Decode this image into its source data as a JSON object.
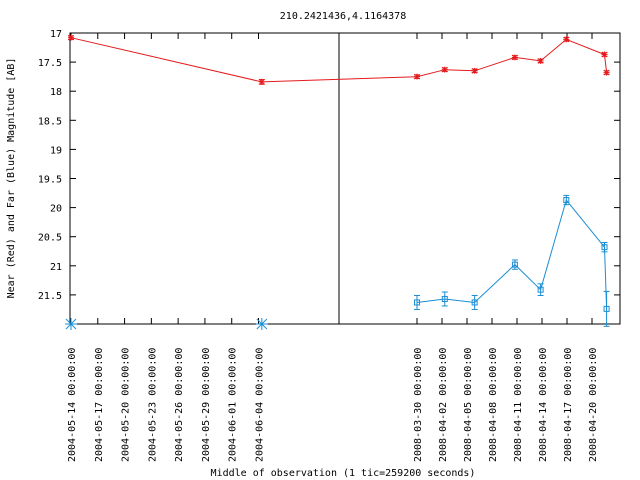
{
  "chart_data": {
    "type": "line",
    "title": "210.2421436,4.1164378",
    "xlabel": "Middle of observation (1 tic=259200 seconds)",
    "ylabel": "Near (Red) and Far (Blue) Magnitude [AB]",
    "ylim": [
      22.0,
      17.0
    ],
    "y_inverted": true,
    "y_ticks": [
      "17",
      "17.5",
      "18",
      "18.5",
      "19",
      "19.5",
      "20",
      "20.5",
      "21",
      "21.5"
    ],
    "x_ticks": [
      "2004-05-14 00:00:00",
      "2004-05-17 00:00:00",
      "2004-05-20 00:00:00",
      "2004-05-23 00:00:00",
      "2004-05-26 00:00:00",
      "2004-05-29 00:00:00",
      "2004-06-01 00:00:00",
      "2004-06-04 00:00:00",
      "2008-03-30 00:00:00",
      "2008-04-02 00:00:00",
      "2008-04-05 00:00:00",
      "2008-04-08 00:00:00",
      "2008-04-11 00:00:00",
      "2008-04-14 00:00:00",
      "2008-04-17 00:00:00",
      "2008-04-20 00:00:00"
    ],
    "grid": false,
    "series": [
      {
        "color": "#e41a1c",
        "marker": "star",
        "points": [
          {
            "x": "2004-05-14 00:00:00",
            "y": 17.08,
            "err": 0.03
          },
          {
            "x": "2004-06-04 09:00:00",
            "y": 17.84,
            "err": 0.04
          },
          {
            "x": "2008-03-30 00:00:00",
            "y": 17.75,
            "err": 0.03
          },
          {
            "x": "2008-04-02 08:00:00",
            "y": 17.63,
            "err": 0.03
          },
          {
            "x": "2008-04-05 22:00:00",
            "y": 17.65,
            "err": 0.03
          },
          {
            "x": "2008-04-10 18:00:00",
            "y": 17.42,
            "err": 0.03
          },
          {
            "x": "2008-04-13 20:00:00",
            "y": 17.48,
            "err": 0.03
          },
          {
            "x": "2008-04-16 22:00:00",
            "y": 17.11,
            "err": 0.03
          },
          {
            "x": "2008-04-21 12:00:00",
            "y": 17.37,
            "err": 0.03
          },
          {
            "x": "2008-04-21 18:00:00",
            "y": 17.68,
            "err": 0.03
          }
        ]
      },
      {
        "color": "#1a8dd4",
        "marker": "box",
        "points": [
          {
            "x": "2008-03-30 00:00:00",
            "y": 21.63,
            "err": 0.12
          },
          {
            "x": "2008-04-02 08:00:00",
            "y": 21.57,
            "err": 0.12
          },
          {
            "x": "2008-04-05 22:00:00",
            "y": 21.63,
            "err": 0.12
          },
          {
            "x": "2008-04-10 18:00:00",
            "y": 20.98,
            "err": 0.08
          },
          {
            "x": "2008-04-13 20:00:00",
            "y": 21.41,
            "err": 0.1
          },
          {
            "x": "2008-04-16 22:00:00",
            "y": 19.87,
            "err": 0.08
          },
          {
            "x": "2008-04-21 12:00:00",
            "y": 20.68,
            "err": 0.08
          },
          {
            "x": "2008-04-21 18:00:00",
            "y": 21.74,
            "err": 0.3
          }
        ],
        "upper_limits": [
          {
            "x": "2004-05-14 00:00:00"
          },
          {
            "x": "2004-06-04 09:00:00"
          }
        ]
      }
    ]
  }
}
